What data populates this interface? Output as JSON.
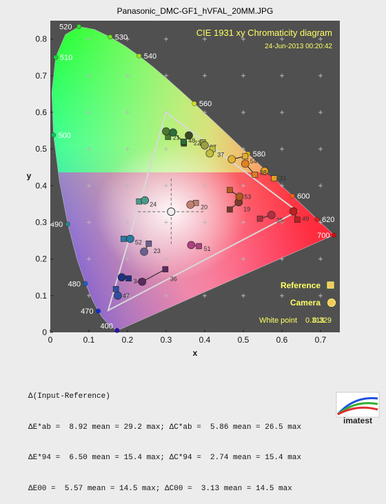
{
  "title": "Panasonic_DMC-GF1_hVFAL_20MM.JPG",
  "inner_title": "CIE 1931 xy Chromaticity diagram",
  "timestamp": "24-Jun-2013 00:20:42",
  "legend": {
    "reference": "Reference",
    "camera": "Camera"
  },
  "white_point": {
    "label": "White point",
    "x": "0.313",
    "y": "0.329"
  },
  "stats": {
    "header": "Δ(Input-Reference)",
    "line1": "ΔE*ab =  8.92 mean = 29.2 max; ΔC*ab =  5.86 mean = 26.5 max",
    "line2": "ΔE*94 =  6.50 mean = 15.4 max; ΔC*94 =  2.74 mean = 15.4 max",
    "line3": "ΔE00 =  5.57 mean = 14.5 max; ΔC00 =  3.13 mean = 14.5 max"
  },
  "logo_text": "imatest",
  "colors": {
    "plot_bg": "#505050",
    "label": "#ffff66",
    "gamut": "#dddddd"
  },
  "chart_data": {
    "type": "scatter",
    "title": "Panasonic_DMC-GF1_hVFAL_20MM.JPG",
    "xlabel": "x",
    "ylabel": "y",
    "xlim": [
      0,
      0.75
    ],
    "ylim": [
      0,
      0.85
    ],
    "x_ticks": [
      "0",
      "0.1",
      "0.2",
      "0.3",
      "0.4",
      "0.5",
      "0.6",
      "0.7"
    ],
    "y_ticks": [
      "0",
      "0.1",
      "0.2",
      "0.3",
      "0.4",
      "0.5",
      "0.6",
      "0.7",
      "0.8"
    ],
    "legend_position": "lower-right",
    "grid": true,
    "spectral_labels": [
      {
        "label": "400",
        "x": 0.173,
        "y": 0.005
      },
      {
        "label": "470",
        "x": 0.124,
        "y": 0.058
      },
      {
        "label": "480",
        "x": 0.091,
        "y": 0.133
      },
      {
        "label": "490",
        "x": 0.045,
        "y": 0.295
      },
      {
        "label": "500",
        "x": 0.008,
        "y": 0.538
      },
      {
        "label": "510",
        "x": 0.014,
        "y": 0.75
      },
      {
        "label": "520",
        "x": 0.074,
        "y": 0.834
      },
      {
        "label": "530",
        "x": 0.155,
        "y": 0.806
      },
      {
        "label": "540",
        "x": 0.23,
        "y": 0.754
      },
      {
        "label": "560",
        "x": 0.373,
        "y": 0.624
      },
      {
        "label": "580",
        "x": 0.512,
        "y": 0.487
      },
      {
        "label": "600",
        "x": 0.627,
        "y": 0.372
      },
      {
        "label": "620",
        "x": 0.691,
        "y": 0.308
      },
      {
        "label": "700",
        "x": 0.735,
        "y": 0.265
      }
    ],
    "gamut_triangle": [
      [
        0.64,
        0.33
      ],
      [
        0.3,
        0.6
      ],
      [
        0.15,
        0.06
      ]
    ],
    "white_point": [
      0.313,
      0.329
    ],
    "patches": [
      {
        "id": 19,
        "ref": [
          0.465,
          0.335
        ],
        "cam": [
          0.488,
          0.355
        ],
        "color": "#7a3b2a"
      },
      {
        "id": 20,
        "ref": [
          0.377,
          0.353
        ],
        "cam": [
          0.363,
          0.348
        ],
        "color": "#c08070"
      },
      {
        "id": 21,
        "ref": [
          0.305,
          0.533
        ],
        "cam": [
          0.3,
          0.548
        ],
        "color": "#4c7a30"
      },
      {
        "id": 22,
        "ref": [
          0.346,
          0.515
        ],
        "cam": [
          0.359,
          0.537
        ],
        "color": "#3a4a20"
      },
      {
        "id": 23,
        "ref": [
          0.255,
          0.242
        ],
        "cam": [
          0.243,
          0.22
        ],
        "color": "#6a6090"
      },
      {
        "id": 24,
        "ref": [
          0.23,
          0.357
        ],
        "cam": [
          0.245,
          0.36
        ],
        "color": "#4a9a8a"
      },
      {
        "id": 27,
        "ref": [
          0.395,
          0.518
        ],
        "cam": [
          0.4,
          0.51
        ],
        "color": "#9aa040"
      },
      {
        "id": 33,
        "ref": [
          0.58,
          0.42
        ],
        "cam": [
          0.555,
          0.44
        ],
        "color": "#e0a020"
      },
      {
        "id": 34,
        "ref": [
          0.203,
          0.147
        ],
        "cam": [
          0.185,
          0.15
        ],
        "color": "#203080"
      },
      {
        "id": 35,
        "ref": [
          0.543,
          0.31
        ],
        "cam": [
          0.573,
          0.32
        ],
        "color": "#b03040"
      },
      {
        "id": 36,
        "ref": [
          0.298,
          0.172
        ],
        "cam": [
          0.238,
          0.138
        ],
        "color": "#5a2a60"
      },
      {
        "id": 37,
        "ref": [
          0.42,
          0.5
        ],
        "cam": [
          0.413,
          0.488
        ],
        "color": "#c0c040"
      },
      {
        "id": 38,
        "ref": [
          0.53,
          0.43
        ],
        "cam": [
          0.505,
          0.46
        ],
        "color": "#e08020"
      },
      {
        "id": 47,
        "ref": [
          0.17,
          0.118
        ],
        "cam": [
          0.175,
          0.1
        ],
        "color": "#3050a0"
      },
      {
        "id": 48,
        "ref": [
          0.345,
          0.52
        ],
        "cam": [
          0.318,
          0.545
        ],
        "color": "#2e6e3a"
      },
      {
        "id": 49,
        "ref": [
          0.64,
          0.307
        ],
        "cam": [
          0.63,
          0.33
        ],
        "color": "#c02020"
      },
      {
        "id": 51,
        "ref": [
          0.385,
          0.235
        ],
        "cam": [
          0.365,
          0.238
        ],
        "color": "#b04080"
      },
      {
        "id": 52,
        "ref": [
          0.19,
          0.255
        ],
        "cam": [
          0.207,
          0.255
        ],
        "color": "#2a7aa0"
      },
      {
        "id": 53,
        "ref": [
          0.465,
          0.388
        ],
        "cam": [
          0.49,
          0.37
        ],
        "color": "#b05a20"
      },
      {
        "id": 54,
        "ref": [
          0.505,
          0.48
        ],
        "cam": [
          0.47,
          0.472
        ],
        "color": "#e0b030"
      }
    ]
  }
}
